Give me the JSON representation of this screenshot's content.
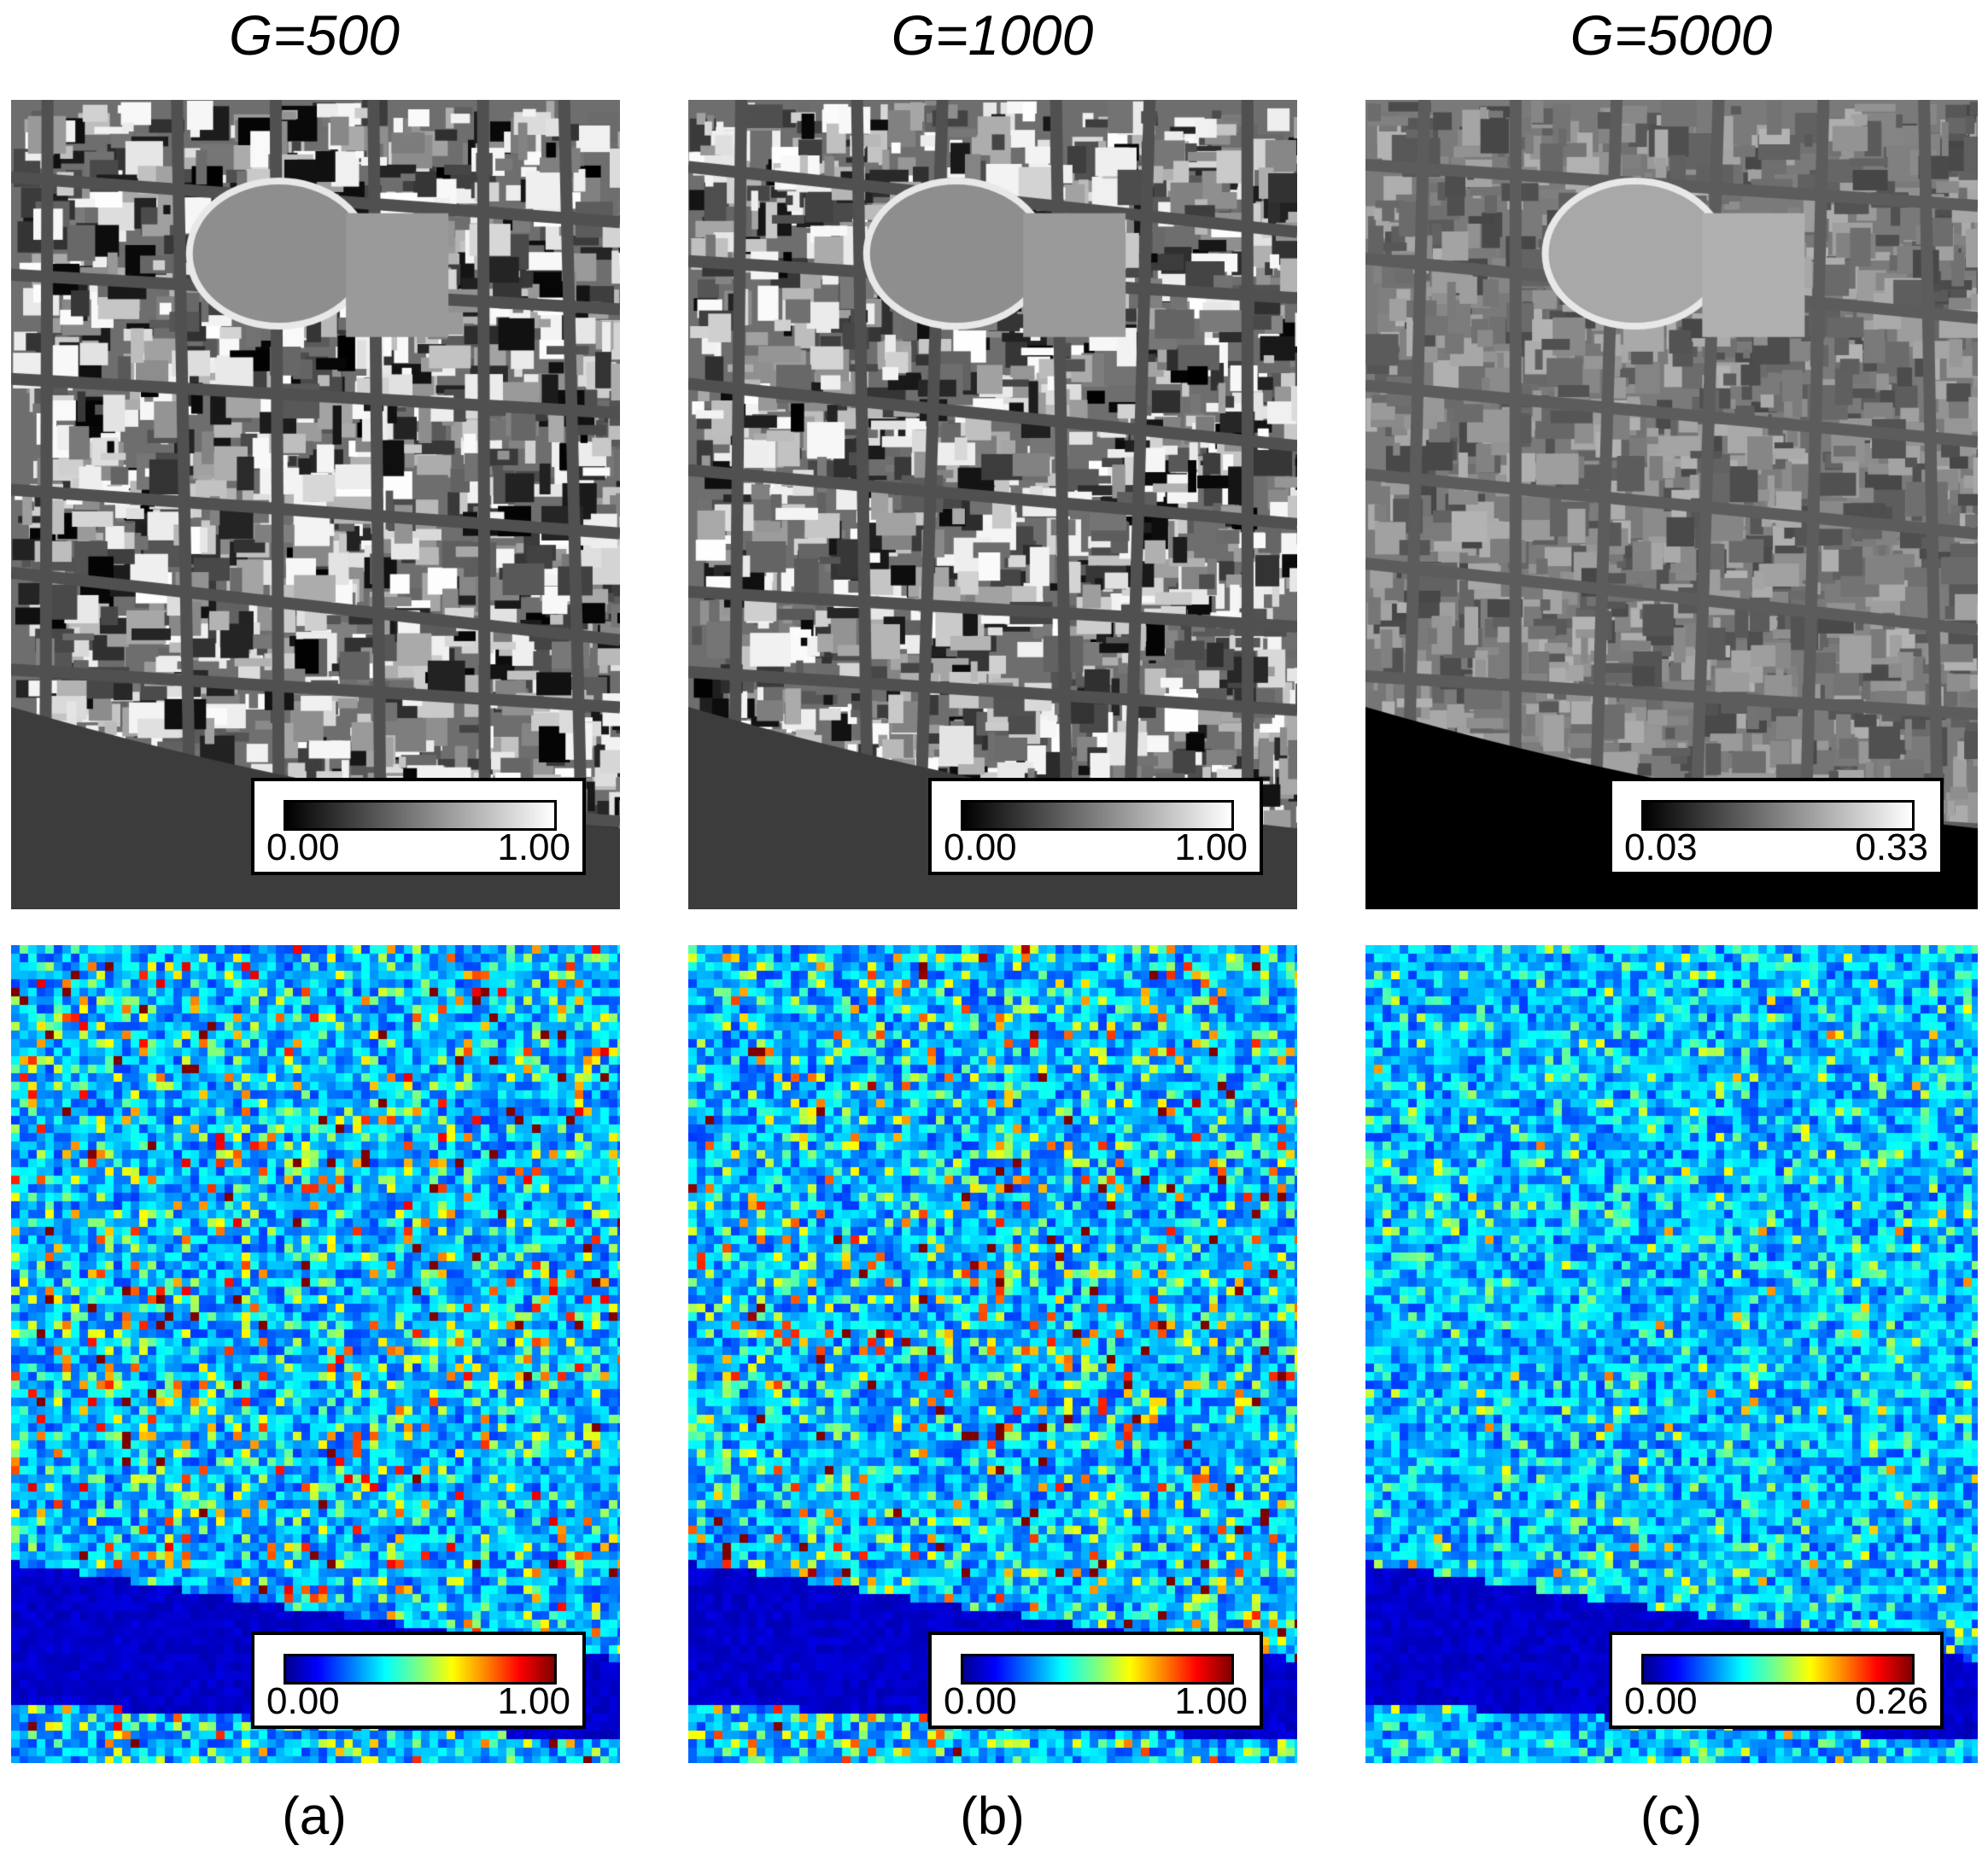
{
  "columns": [
    {
      "title": "G=500",
      "label": "(a)",
      "segmentation_legend": {
        "min": "0.00",
        "max": "1.00"
      },
      "heatmap_legend": {
        "min": "0.00",
        "max": "1.00"
      }
    },
    {
      "title": "G=1000",
      "label": "(b)",
      "segmentation_legend": {
        "min": "0.00",
        "max": "1.00"
      },
      "heatmap_legend": {
        "min": "0.00",
        "max": "1.00"
      }
    },
    {
      "title": "G=5000",
      "label": "(c)",
      "segmentation_legend": {
        "min": "0.03",
        "max": "0.33"
      },
      "heatmap_legend": {
        "min": "0.00",
        "max": "0.26"
      }
    }
  ],
  "colormaps": {
    "segmentation": "grayscale",
    "heatmap": "jet"
  }
}
